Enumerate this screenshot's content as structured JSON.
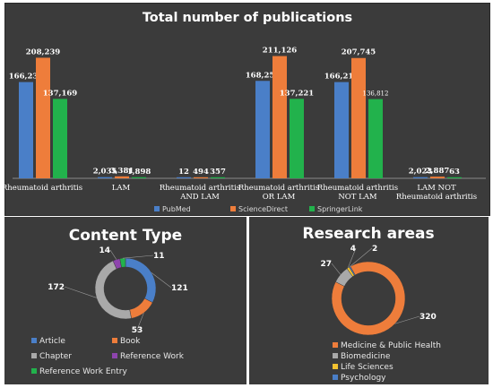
{
  "colors": {
    "pubmed": "#4a7fc8",
    "sciencedirect": "#ee7d3b",
    "springerlink": "#22b24c",
    "article": "#4a7fc8",
    "book": "#ee7d3b",
    "chapter": "#a9a9a9",
    "reference_work": "#8e44ad",
    "reference_work_entry": "#22b24c",
    "medicine": "#ee7d3b",
    "biomedicine": "#a9a9a9",
    "life_sciences": "#f2c230",
    "psychology": "#4a7fc8"
  },
  "chart_data": [
    {
      "type": "bar",
      "title": "Total number of publications",
      "categories": [
        "Rheumatoid arthritis",
        "LAM",
        "Rheumatoid arthritis AND LAM",
        "Rheumatoid arthritis OR LAM",
        "Rheumatoid arthritis NOT LAM",
        "LAM NOT Rheumatoid arthritis"
      ],
      "category_lines": [
        [
          "Rheumatoid arthritis"
        ],
        [
          "LAM"
        ],
        [
          "Rheumatoid arthritis",
          "AND LAM"
        ],
        [
          "Rheumatoid arthritis",
          "OR LAM"
        ],
        [
          "Rheumatoid arthritis",
          "NOT LAM"
        ],
        [
          "LAM NOT",
          "Rheumatoid arthritis"
        ]
      ],
      "series": [
        {
          "name": "PubMed",
          "values": [
            166231,
            2035,
            12,
            168254,
            166219,
            2023
          ],
          "labels": [
            "166,231",
            "2,035",
            "12",
            "168,254",
            "166,219",
            "2,023"
          ]
        },
        {
          "name": "ScienceDirect",
          "values": [
            208239,
            3381,
            494,
            211126,
            207745,
            2887
          ],
          "labels": [
            "208,239",
            "3,381",
            "494",
            "211,126",
            "207,745",
            "2,887"
          ]
        },
        {
          "name": "SpringerLink",
          "values": [
            137169,
            1898,
            357,
            137221,
            136812,
            63
          ],
          "labels": [
            "137,169",
            "1,898",
            "357",
            "137,221",
            "136,812",
            "63"
          ]
        }
      ],
      "ylim": [
        0,
        212000
      ],
      "legend": "bottom"
    },
    {
      "type": "pie",
      "variant": "donut",
      "title": "Content Type",
      "slices": [
        {
          "name": "Article",
          "value": 121
        },
        {
          "name": "Book",
          "value": 53
        },
        {
          "name": "Chapter",
          "value": 172
        },
        {
          "name": "Reference Work",
          "value": 14
        },
        {
          "name": "Reference Work Entry",
          "value": 11
        }
      ],
      "legend": "bottom"
    },
    {
      "type": "pie",
      "variant": "donut",
      "title": "Research areas",
      "slices": [
        {
          "name": "Medicine & Public Health",
          "value": 320
        },
        {
          "name": "Biomedicine",
          "value": 27
        },
        {
          "name": "Life Sciences",
          "value": 4
        },
        {
          "name": "Psychology",
          "value": 2
        }
      ],
      "legend": "bottom"
    }
  ]
}
